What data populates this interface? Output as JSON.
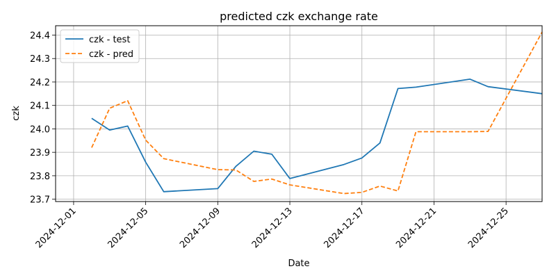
{
  "chart_data": {
    "type": "line",
    "title": "predicted czk exchange rate",
    "xlabel": "Date",
    "ylabel": "czk",
    "xlim": [
      "2024-11-30",
      "2024-12-27"
    ],
    "ylim": [
      23.69,
      24.44
    ],
    "x_ticks": [
      "2024-12-01",
      "2024-12-05",
      "2024-12-09",
      "2024-12-13",
      "2024-12-17",
      "2024-12-21",
      "2024-12-25"
    ],
    "y_ticks": [
      "23.7",
      "23.8",
      "23.9",
      "24.0",
      "24.1",
      "24.2",
      "24.3",
      "24.4"
    ],
    "grid": true,
    "legend_position": "top-left",
    "series": [
      {
        "name": "czk - test",
        "color": "#1f77b4",
        "style": "solid",
        "x": [
          "2024-12-02",
          "2024-12-03",
          "2024-12-04",
          "2024-12-05",
          "2024-12-06",
          "2024-12-09",
          "2024-12-10",
          "2024-12-11",
          "2024-12-12",
          "2024-12-13",
          "2024-12-16",
          "2024-12-17",
          "2024-12-18",
          "2024-12-19",
          "2024-12-20",
          "2024-12-23",
          "2024-12-24",
          "2024-12-27"
        ],
        "values": [
          24.045,
          23.995,
          24.012,
          23.858,
          23.732,
          23.745,
          23.84,
          23.905,
          23.892,
          23.788,
          23.848,
          23.876,
          23.94,
          24.172,
          24.178,
          24.212,
          24.18,
          24.15
        ]
      },
      {
        "name": "czk - pred",
        "color": "#ff7f0e",
        "style": "dashed",
        "x": [
          "2024-12-02",
          "2024-12-03",
          "2024-12-04",
          "2024-12-05",
          "2024-12-06",
          "2024-12-09",
          "2024-12-10",
          "2024-12-11",
          "2024-12-12",
          "2024-12-13",
          "2024-12-16",
          "2024-12-17",
          "2024-12-18",
          "2024-12-19",
          "2024-12-20",
          "2024-12-23",
          "2024-12-24",
          "2024-12-27"
        ],
        "values": [
          23.92,
          24.088,
          24.12,
          23.952,
          23.873,
          23.826,
          23.825,
          23.776,
          23.786,
          23.761,
          23.724,
          23.729,
          23.756,
          23.735,
          23.988,
          23.988,
          23.989,
          24.413
        ]
      }
    ]
  }
}
